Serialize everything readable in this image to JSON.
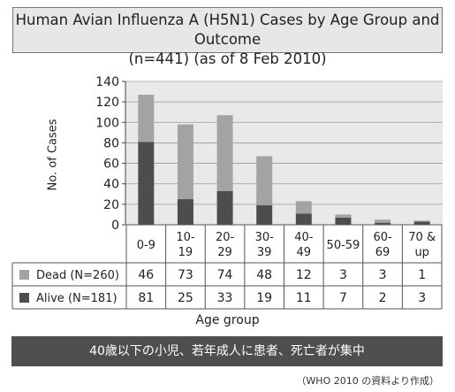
{
  "title": {
    "line1": "Human Avian Influenza A (H5N1) Cases by Age Group and Outcome",
    "line2": "(n=441) (as of 8 Feb 2010)"
  },
  "chart_data": {
    "type": "bar",
    "stacked": true,
    "title": "Human Avian Influenza A (H5N1) Cases by Age Group and Outcome (n=441) (as of 8 Feb 2010)",
    "xlabel": "Age group",
    "ylabel": "No. of Cases",
    "ylim": [
      0,
      140
    ],
    "yticks": [
      0,
      20,
      40,
      60,
      80,
      100,
      120,
      140
    ],
    "grid": true,
    "categories": [
      "0-9",
      "10-\n19",
      "20-\n29",
      "30-\n39",
      "40-\n49",
      "50-59",
      "60-\n69",
      "70 &\nup"
    ],
    "series": [
      {
        "name": "Alive (N=181)",
        "values": [
          81,
          25,
          33,
          19,
          11,
          7,
          2,
          3
        ],
        "color": "#4d4d4d"
      },
      {
        "name": "Dead (N=260)",
        "values": [
          46,
          73,
          74,
          48,
          12,
          3,
          3,
          1
        ],
        "color": "#a3a3a3"
      }
    ],
    "table_rows": [
      "Dead (N=260)",
      "Alive (N=181)"
    ]
  },
  "banner": "40歳以下の小児、若年成人に患者、死亡者が集中",
  "source": "（WHO 2010 の資料より作成）"
}
